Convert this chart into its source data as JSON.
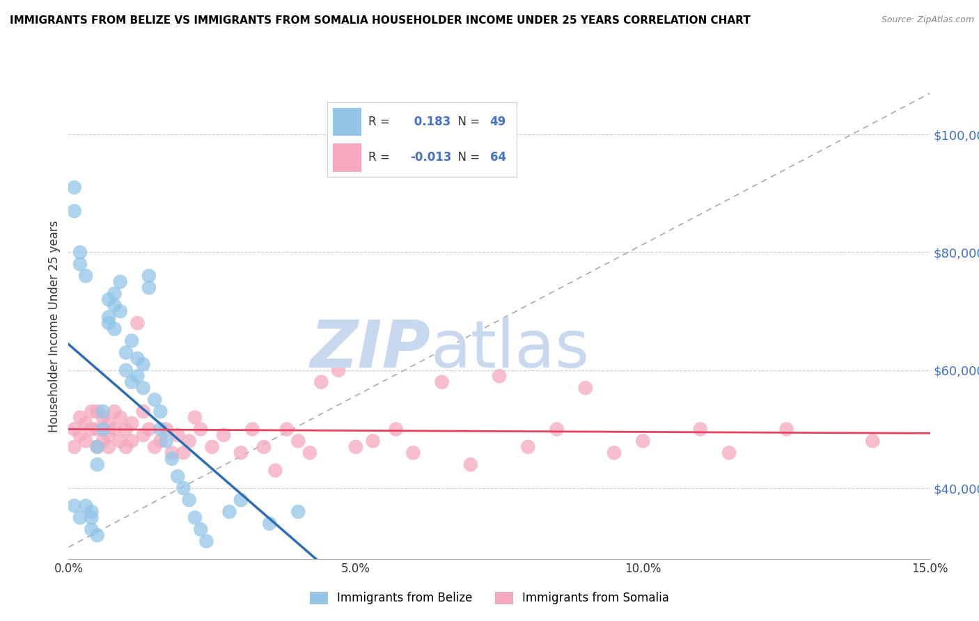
{
  "title": "IMMIGRANTS FROM BELIZE VS IMMIGRANTS FROM SOMALIA HOUSEHOLDER INCOME UNDER 25 YEARS CORRELATION CHART",
  "source": "Source: ZipAtlas.com",
  "ylabel": "Householder Income Under 25 years",
  "xmin": 0.0,
  "xmax": 0.15,
  "ymin": 28000,
  "ymax": 107000,
  "yticks": [
    40000,
    60000,
    80000,
    100000
  ],
  "ytick_labels": [
    "$40,000",
    "$60,000",
    "$80,000",
    "$100,000"
  ],
  "xticks": [
    0.0,
    0.05,
    0.1,
    0.15
  ],
  "xtick_labels": [
    "0.0%",
    "5.0%",
    "10.0%",
    "15.0%"
  ],
  "belize_R": 0.183,
  "belize_N": 49,
  "somalia_R": -0.013,
  "somalia_N": 64,
  "belize_color": "#92C5E8",
  "somalia_color": "#F5A8BE",
  "belize_line_color": "#2E6DB4",
  "somalia_line_color": "#E84060",
  "ref_line_color": "#AAAAAA",
  "background_color": "#FFFFFF",
  "watermark_color": "#C8D8EE",
  "grid_color": "#CCCCCC",
  "belize_x": [
    0.001,
    0.002,
    0.003,
    0.004,
    0.004,
    0.005,
    0.005,
    0.006,
    0.006,
    0.007,
    0.007,
    0.007,
    0.008,
    0.008,
    0.008,
    0.009,
    0.009,
    0.01,
    0.01,
    0.011,
    0.011,
    0.012,
    0.012,
    0.013,
    0.013,
    0.014,
    0.014,
    0.015,
    0.016,
    0.016,
    0.017,
    0.018,
    0.019,
    0.02,
    0.021,
    0.022,
    0.023,
    0.024,
    0.001,
    0.001,
    0.002,
    0.002,
    0.003,
    0.004,
    0.005,
    0.028,
    0.03,
    0.035,
    0.04
  ],
  "belize_y": [
    37000,
    35000,
    37000,
    33000,
    36000,
    44000,
    47000,
    50000,
    53000,
    68000,
    72000,
    69000,
    71000,
    73000,
    67000,
    75000,
    70000,
    63000,
    60000,
    58000,
    65000,
    62000,
    59000,
    57000,
    61000,
    74000,
    76000,
    55000,
    53000,
    50000,
    48000,
    45000,
    42000,
    40000,
    38000,
    35000,
    33000,
    31000,
    87000,
    91000,
    80000,
    78000,
    76000,
    35000,
    32000,
    36000,
    38000,
    34000,
    36000
  ],
  "somalia_x": [
    0.001,
    0.001,
    0.002,
    0.002,
    0.003,
    0.003,
    0.004,
    0.004,
    0.005,
    0.005,
    0.005,
    0.006,
    0.006,
    0.007,
    0.007,
    0.007,
    0.008,
    0.008,
    0.009,
    0.009,
    0.01,
    0.01,
    0.011,
    0.011,
    0.012,
    0.013,
    0.013,
    0.014,
    0.015,
    0.016,
    0.017,
    0.018,
    0.019,
    0.02,
    0.021,
    0.022,
    0.023,
    0.025,
    0.027,
    0.03,
    0.032,
    0.034,
    0.036,
    0.038,
    0.04,
    0.042,
    0.044,
    0.047,
    0.05,
    0.053,
    0.057,
    0.06,
    0.065,
    0.07,
    0.075,
    0.08,
    0.085,
    0.09,
    0.095,
    0.1,
    0.11,
    0.115,
    0.125,
    0.14
  ],
  "somalia_y": [
    50000,
    47000,
    52000,
    49000,
    51000,
    48000,
    53000,
    50000,
    53000,
    50000,
    47000,
    48000,
    52000,
    49000,
    51000,
    47000,
    50000,
    53000,
    48000,
    52000,
    50000,
    47000,
    51000,
    48000,
    68000,
    49000,
    53000,
    50000,
    47000,
    48000,
    50000,
    46000,
    49000,
    46000,
    48000,
    52000,
    50000,
    47000,
    49000,
    46000,
    50000,
    47000,
    43000,
    50000,
    48000,
    46000,
    58000,
    60000,
    47000,
    48000,
    50000,
    46000,
    58000,
    44000,
    59000,
    47000,
    50000,
    57000,
    46000,
    48000,
    50000,
    46000,
    50000,
    48000
  ]
}
